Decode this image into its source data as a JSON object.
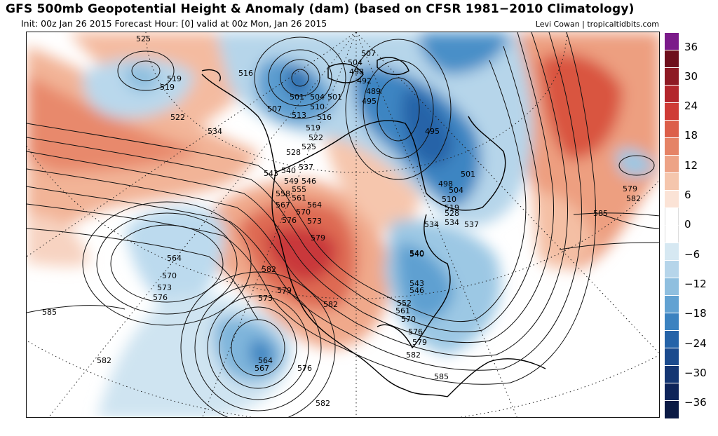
{
  "header": {
    "title": "GFS 500mb Geopotential Height & Anomaly (dam) (based on CFSR 1981−2010 Climatology)",
    "subtitle_left": "Init: 00z Jan 26 2015   Forecast Hour: [0]   valid at 00z Mon, Jan 26 2015",
    "credit": "Levi Cowan | tropicaltidbits.com"
  },
  "colorbar": {
    "ticks": [
      "36",
      "30",
      "24",
      "18",
      "12",
      "6",
      "0",
      "−6",
      "−12",
      "−18",
      "−24",
      "−30",
      "−36"
    ],
    "colors": [
      "#7b1b8a",
      "#6e0f1c",
      "#8e1a24",
      "#b3262c",
      "#cf3b36",
      "#dc5f4a",
      "#e58366",
      "#eda386",
      "#f5c6ad",
      "#fbe3d6",
      "#ffffff",
      "#ffffff",
      "#d6e8f2",
      "#b6d5ea",
      "#8fbfdf",
      "#62a2d2",
      "#3b82c0",
      "#2563a8",
      "#1b4b8e",
      "#143673",
      "#0e245a",
      "#0a1a45"
    ]
  },
  "map": {
    "contour_labels": [
      {
        "text": "525"
      },
      {
        "text": "519"
      },
      {
        "text": "519"
      },
      {
        "text": "522"
      },
      {
        "text": "534"
      },
      {
        "text": "516"
      },
      {
        "text": "501"
      },
      {
        "text": "504"
      },
      {
        "text": "501"
      },
      {
        "text": "507"
      },
      {
        "text": "510"
      },
      {
        "text": "513"
      },
      {
        "text": "516"
      },
      {
        "text": "519"
      },
      {
        "text": "522"
      },
      {
        "text": "525"
      },
      {
        "text": "528"
      },
      {
        "text": "507"
      },
      {
        "text": "504"
      },
      {
        "text": "498"
      },
      {
        "text": "492"
      },
      {
        "text": "489"
      },
      {
        "text": "495"
      },
      {
        "text": "495"
      },
      {
        "text": "498"
      },
      {
        "text": "501"
      },
      {
        "text": "504"
      },
      {
        "text": "510"
      },
      {
        "text": "519"
      },
      {
        "text": "528"
      },
      {
        "text": "534"
      },
      {
        "text": "537"
      },
      {
        "text": "540"
      },
      {
        "text": "543"
      },
      {
        "text": "540"
      },
      {
        "text": "537"
      },
      {
        "text": "549"
      },
      {
        "text": "546"
      },
      {
        "text": "555"
      },
      {
        "text": "561"
      },
      {
        "text": "558"
      },
      {
        "text": "567"
      },
      {
        "text": "564"
      },
      {
        "text": "570"
      },
      {
        "text": "576"
      },
      {
        "text": "573"
      },
      {
        "text": "579"
      },
      {
        "text": "582"
      },
      {
        "text": "582"
      },
      {
        "text": "579"
      },
      {
        "text": "573"
      },
      {
        "text": "564"
      },
      {
        "text": "570"
      },
      {
        "text": "573"
      },
      {
        "text": "576"
      },
      {
        "text": "585"
      },
      {
        "text": "582"
      },
      {
        "text": "564"
      },
      {
        "text": "567"
      },
      {
        "text": "576"
      },
      {
        "text": "582"
      },
      {
        "text": "585"
      },
      {
        "text": "582"
      },
      {
        "text": "579"
      },
      {
        "text": "576"
      },
      {
        "text": "570"
      },
      {
        "text": "561"
      },
      {
        "text": "552"
      },
      {
        "text": "546"
      },
      {
        "text": "543"
      },
      {
        "text": "540"
      },
      {
        "text": "534"
      },
      {
        "text": "579"
      },
      {
        "text": "582"
      },
      {
        "text": "585"
      }
    ]
  }
}
